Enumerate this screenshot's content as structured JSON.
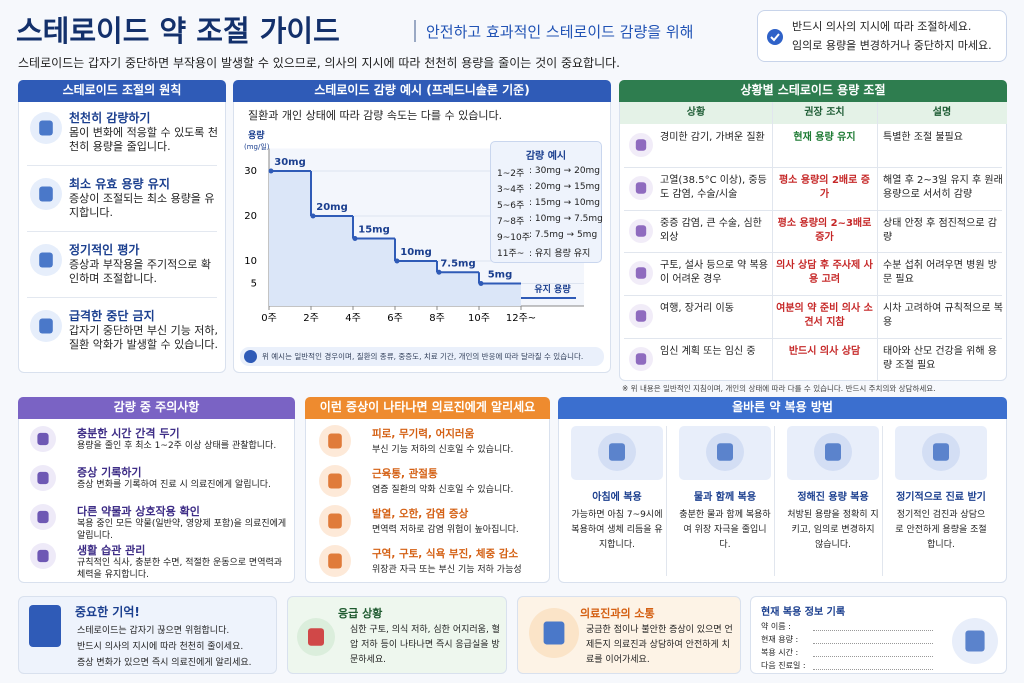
{
  "header": {
    "title": "스테로이드 약 조절 가이드",
    "subtitle": "안전하고 효과적인 스테로이드 감량을 위해",
    "intro": "스테로이드는 갑자기 중단하면 부작용이 발생할 수 있으므로, 의사의 지시에 따라 천천히 용량을 줄이는 것이 중요합니다."
  },
  "notice": [
    "반드시 의사의 지시에 따라 조절하세요.",
    "임의로 용량을 변경하거나 중단하지 마세요."
  ],
  "principles": {
    "title": "스테로이드 조절의 원칙",
    "items": [
      {
        "title": "천천히 감량하기",
        "desc": "몸이 변화에 적응할 수 있도록 천천히 용량을 줄입니다."
      },
      {
        "title": "최소 유효 용량 유지",
        "desc": "증상이 조절되는 최소 용량을 유지합니다."
      },
      {
        "title": "정기적인 평가",
        "desc": "증상과 부작용을 주기적으로 확인하며 조절합니다."
      },
      {
        "title": "급격한 중단 금지",
        "desc": "갑자기 중단하면 부신 기능 저하, 질환 악화가 발생할 수 있습니다."
      }
    ]
  },
  "taper": {
    "title": "스테로이드 감량 예시 (프레드니솔론 기준)",
    "note": "질환과 개인 상태에 따라 감량 속도는 다를 수 있습니다.",
    "example_title": "감량 예시",
    "examples": [
      [
        "1~2주",
        ": 30mg → 20mg"
      ],
      [
        "3~4주",
        ": 20mg → 15mg"
      ],
      [
        "5~6주",
        ": 15mg → 10mg"
      ],
      [
        "7~8주",
        ": 10mg → 7.5mg"
      ],
      [
        "9~10주",
        ": 7.5mg → 5mg"
      ],
      [
        "11주~",
        ": 유지 용량 유지"
      ]
    ],
    "footnote": "위 예시는 일반적인 경우이며, 질환의 종류, 중증도, 치료 기간, 개인의 반응에 따라 달라질 수 있습니다."
  },
  "chart_data": {
    "type": "step",
    "ylabel": "용량",
    "yunit": "(mg/일)",
    "x": [
      0,
      2,
      4,
      6,
      8,
      10
    ],
    "values": [
      30,
      20,
      15,
      10,
      7.5,
      5
    ],
    "value_labels": [
      "30mg",
      "20mg",
      "15mg",
      "10mg",
      "7.5mg",
      "5mg"
    ],
    "end_x": 12,
    "annotation": "유지 용량",
    "color": "#2f5bb7",
    "xlim": [
      0,
      15
    ],
    "ylim": [
      0,
      35
    ],
    "xticks": [
      {
        "value": 0,
        "label": "0주"
      },
      {
        "value": 2,
        "label": "2주"
      },
      {
        "value": 4,
        "label": "4주"
      },
      {
        "value": 6,
        "label": "6주"
      },
      {
        "value": 8,
        "label": "8주"
      },
      {
        "value": 10,
        "label": "10주"
      },
      {
        "value": 12,
        "label": "12주~"
      }
    ],
    "yticks": [
      5,
      10,
      20,
      30
    ],
    "grid": true
  },
  "situations": {
    "title": "상황별 스테로이드 용량 조절",
    "headers": [
      "상황",
      "권장 조치",
      "설명"
    ],
    "rows": [
      [
        "경미한 감기, 가벼운 질환",
        "현재 용량 유지",
        "특별한 조절 불필요"
      ],
      [
        "고열(38.5°C 이상), 중등도 감염, 수술/시술",
        "평소 용량의 2배로 증가",
        "해열 후 2~3일 유지 후 원래 용량으로 서서히 감량"
      ],
      [
        "중증 감염, 큰 수술, 심한 외상",
        "평소 용량의 2~3배로 증가",
        "상태 안정 후 점진적으로 감량"
      ],
      [
        "구토, 설사 등으로 약 복용이 어려운 경우",
        "의사 상담 후 주사제 사용 고려",
        "수분 섭취 어려우면 병원 방문 필요"
      ],
      [
        "여행, 장거리 이동",
        "여분의 약 준비 의사 소견서 지참",
        "시차 고려하여 규칙적으로 복용"
      ],
      [
        "임신 계획 또는 임신 중",
        "반드시 의사 상담",
        "태아와 산모 건강을 위해 용량 조절 필요"
      ]
    ],
    "note": "※ 위 내용은 일반적인 지침이며, 개인의 상태에 따라 다를 수 있습니다. 반드시 주치의와 상담하세요."
  },
  "cautions": {
    "title": "감량 중 주의사항",
    "items": [
      {
        "title": "충분한 시간 간격 두기",
        "desc": "용량을 줄인 후 최소 1~2주 이상 상태를 관찰합니다."
      },
      {
        "title": "증상 기록하기",
        "desc": "증상 변화를 기록하여 진료 시 의료진에게 알립니다."
      },
      {
        "title": "다른 약물과 상호작용 확인",
        "desc": "복용 중인 모든 약물(일반약, 영양제 포함)을 의료진에게 알립니다."
      },
      {
        "title": "생활 습관 관리",
        "desc": "규칙적인 식사, 충분한 수면, 적절한 운동으로 면역력과 체력을 유지합니다."
      }
    ]
  },
  "symptoms": {
    "title": "이런 증상이 나타나면 의료진에게 알리세요",
    "items": [
      {
        "title": "피로, 무기력, 어지러움",
        "desc": "부신 기능 저하의 신호일 수 있습니다."
      },
      {
        "title": "근육통, 관절통",
        "desc": "염증 질환의 악화 신호일 수 있습니다."
      },
      {
        "title": "발열, 오한, 감염 증상",
        "desc": "면역력 저하로 감염 위험이 높아집니다."
      },
      {
        "title": "구역, 구토, 식욕 부진, 체중 감소",
        "desc": "위장관 자극 또는 부신 기능 저하 가능성"
      }
    ]
  },
  "dosing": {
    "title": "올바른 약 복용 방법",
    "items": [
      {
        "title": "아침에 복용",
        "desc": "가능하면 아침 7~9시에 복용하여 생체 리듬을 유지합니다."
      },
      {
        "title": "물과 함께 복용",
        "desc": "충분한 물과 함께 복용하여 위장 자극을 줄입니다."
      },
      {
        "title": "정해진 용량 복용",
        "desc": "처방된 용량을 정확히 지키고, 임의로 변경하지 않습니다."
      },
      {
        "title": "정기적으로 진료 받기",
        "desc": "정기적인 검진과 상담으로 안전하게 용량을 조절합니다."
      }
    ]
  },
  "remember": {
    "title": "중요한 기억!",
    "items": [
      "스테로이드는 갑자기 끊으면 위험합니다.",
      "반드시 의사의 지시에 따라 천천히 줄이세요.",
      "증상 변화가 있으면 즉시 의료진에게 알리세요."
    ]
  },
  "emergency": {
    "title": "응급 상황",
    "text": "심한 구토, 의식 저하, 심한 어지러움, 혈압 저하 등이 나타나면 즉시 응급실을 방문하세요."
  },
  "communication": {
    "title": "의료진과의 소통",
    "text": "궁금한 점이나 불안한 증상이 있으면 언제든지 의료진과 상담하여 안전하게 치료를 이어가세요."
  },
  "record": {
    "title": "현재 복용 정보 기록",
    "fields": [
      "약 이름 :",
      "현재 용량 :",
      "복용 시간 :",
      "다음 진료일 :"
    ]
  }
}
